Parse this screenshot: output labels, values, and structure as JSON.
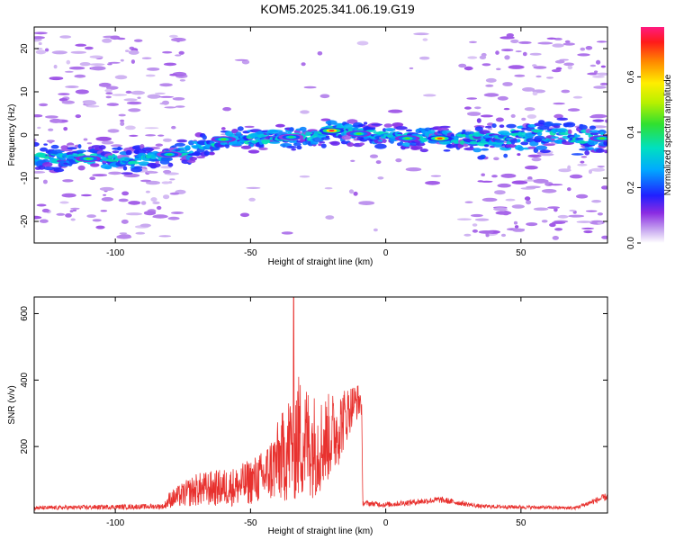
{
  "title": "KOM5.2025.341.06.19.G19",
  "colors": {
    "snr_line": "#e8312e",
    "axis": "#000000"
  },
  "chart_data": [
    {
      "type": "heatmap",
      "name": "spectrogram",
      "xlabel": "Height of straight line (km)",
      "ylabel": "Frequency (Hz)",
      "xlim": [
        -130,
        82
      ],
      "ylim": [
        -25,
        25
      ],
      "xticks": [
        -100,
        -50,
        0,
        50
      ],
      "yticks": [
        -20,
        -10,
        0,
        10,
        20
      ],
      "colorbar": {
        "label": "Normalized spectral amplitude",
        "range": [
          0,
          0.78
        ],
        "ticks": [
          0.0,
          0.2,
          0.4,
          0.6
        ]
      },
      "ridge": [
        [
          -130,
          -5
        ],
        [
          -110,
          -5.5
        ],
        [
          -95,
          -6
        ],
        [
          -85,
          -5
        ],
        [
          -75,
          -4
        ],
        [
          -65,
          -2
        ],
        [
          -55,
          -1
        ],
        [
          -45,
          -1
        ],
        [
          -35,
          -0.5
        ],
        [
          -25,
          0
        ],
        [
          -20,
          1
        ],
        [
          -10,
          0.5
        ],
        [
          0,
          0
        ],
        [
          10,
          -0.5
        ],
        [
          20,
          -0.8
        ],
        [
          30,
          -1
        ],
        [
          45,
          -0.5
        ],
        [
          60,
          0
        ],
        [
          75,
          -0.5
        ],
        [
          82,
          -1
        ]
      ],
      "peaks": [
        {
          "x": -20,
          "y": 1.0,
          "v": 0.75
        },
        {
          "x": 20,
          "y": -0.8,
          "v": 0.7
        },
        {
          "x": -110,
          "y": -5.5,
          "v": 0.45
        },
        {
          "x": -80,
          "y": -4.5,
          "v": 0.4
        },
        {
          "x": -60,
          "y": -1.0,
          "v": 0.45
        },
        {
          "x": -35,
          "y": -0.5,
          "v": 0.4
        },
        {
          "x": -10,
          "y": 0.3,
          "v": 0.45
        },
        {
          "x": 8,
          "y": -0.8,
          "v": 0.45
        },
        {
          "x": 80,
          "y": -0.8,
          "v": 0.45
        }
      ]
    },
    {
      "type": "line",
      "name": "snr",
      "xlabel": "Height of straight line (km)",
      "ylabel": "SNR (v/v)",
      "xlim": [
        -130,
        82
      ],
      "ylim": [
        0,
        650
      ],
      "xticks": [
        -100,
        -50,
        0,
        50
      ],
      "yticks": [
        200,
        400,
        600
      ],
      "envelope": [
        {
          "x": -130,
          "base": 15,
          "amp": 6
        },
        {
          "x": -82,
          "base": 20,
          "amp": 8
        },
        {
          "x": -80,
          "base": 40,
          "amp": 25
        },
        {
          "x": -70,
          "base": 70,
          "amp": 50
        },
        {
          "x": -55,
          "base": 80,
          "amp": 60
        },
        {
          "x": -45,
          "base": 110,
          "amp": 80
        },
        {
          "x": -38,
          "base": 170,
          "amp": 140
        },
        {
          "x": -33,
          "base": 230,
          "amp": 200
        },
        {
          "x": -25,
          "base": 200,
          "amp": 150
        },
        {
          "x": -18,
          "base": 250,
          "amp": 120
        },
        {
          "x": -12,
          "base": 330,
          "amp": 60
        },
        {
          "x": -9,
          "base": 340,
          "amp": 50
        },
        {
          "x": -8.5,
          "base": 30,
          "amp": 8
        },
        {
          "x": 0,
          "base": 25,
          "amp": 8
        },
        {
          "x": 20,
          "base": 40,
          "amp": 10
        },
        {
          "x": 35,
          "base": 20,
          "amp": 6
        },
        {
          "x": 70,
          "base": 15,
          "amp": 5
        },
        {
          "x": 82,
          "base": 50,
          "amp": 12
        }
      ],
      "max_point": {
        "x": -34,
        "y": 650
      }
    }
  ]
}
